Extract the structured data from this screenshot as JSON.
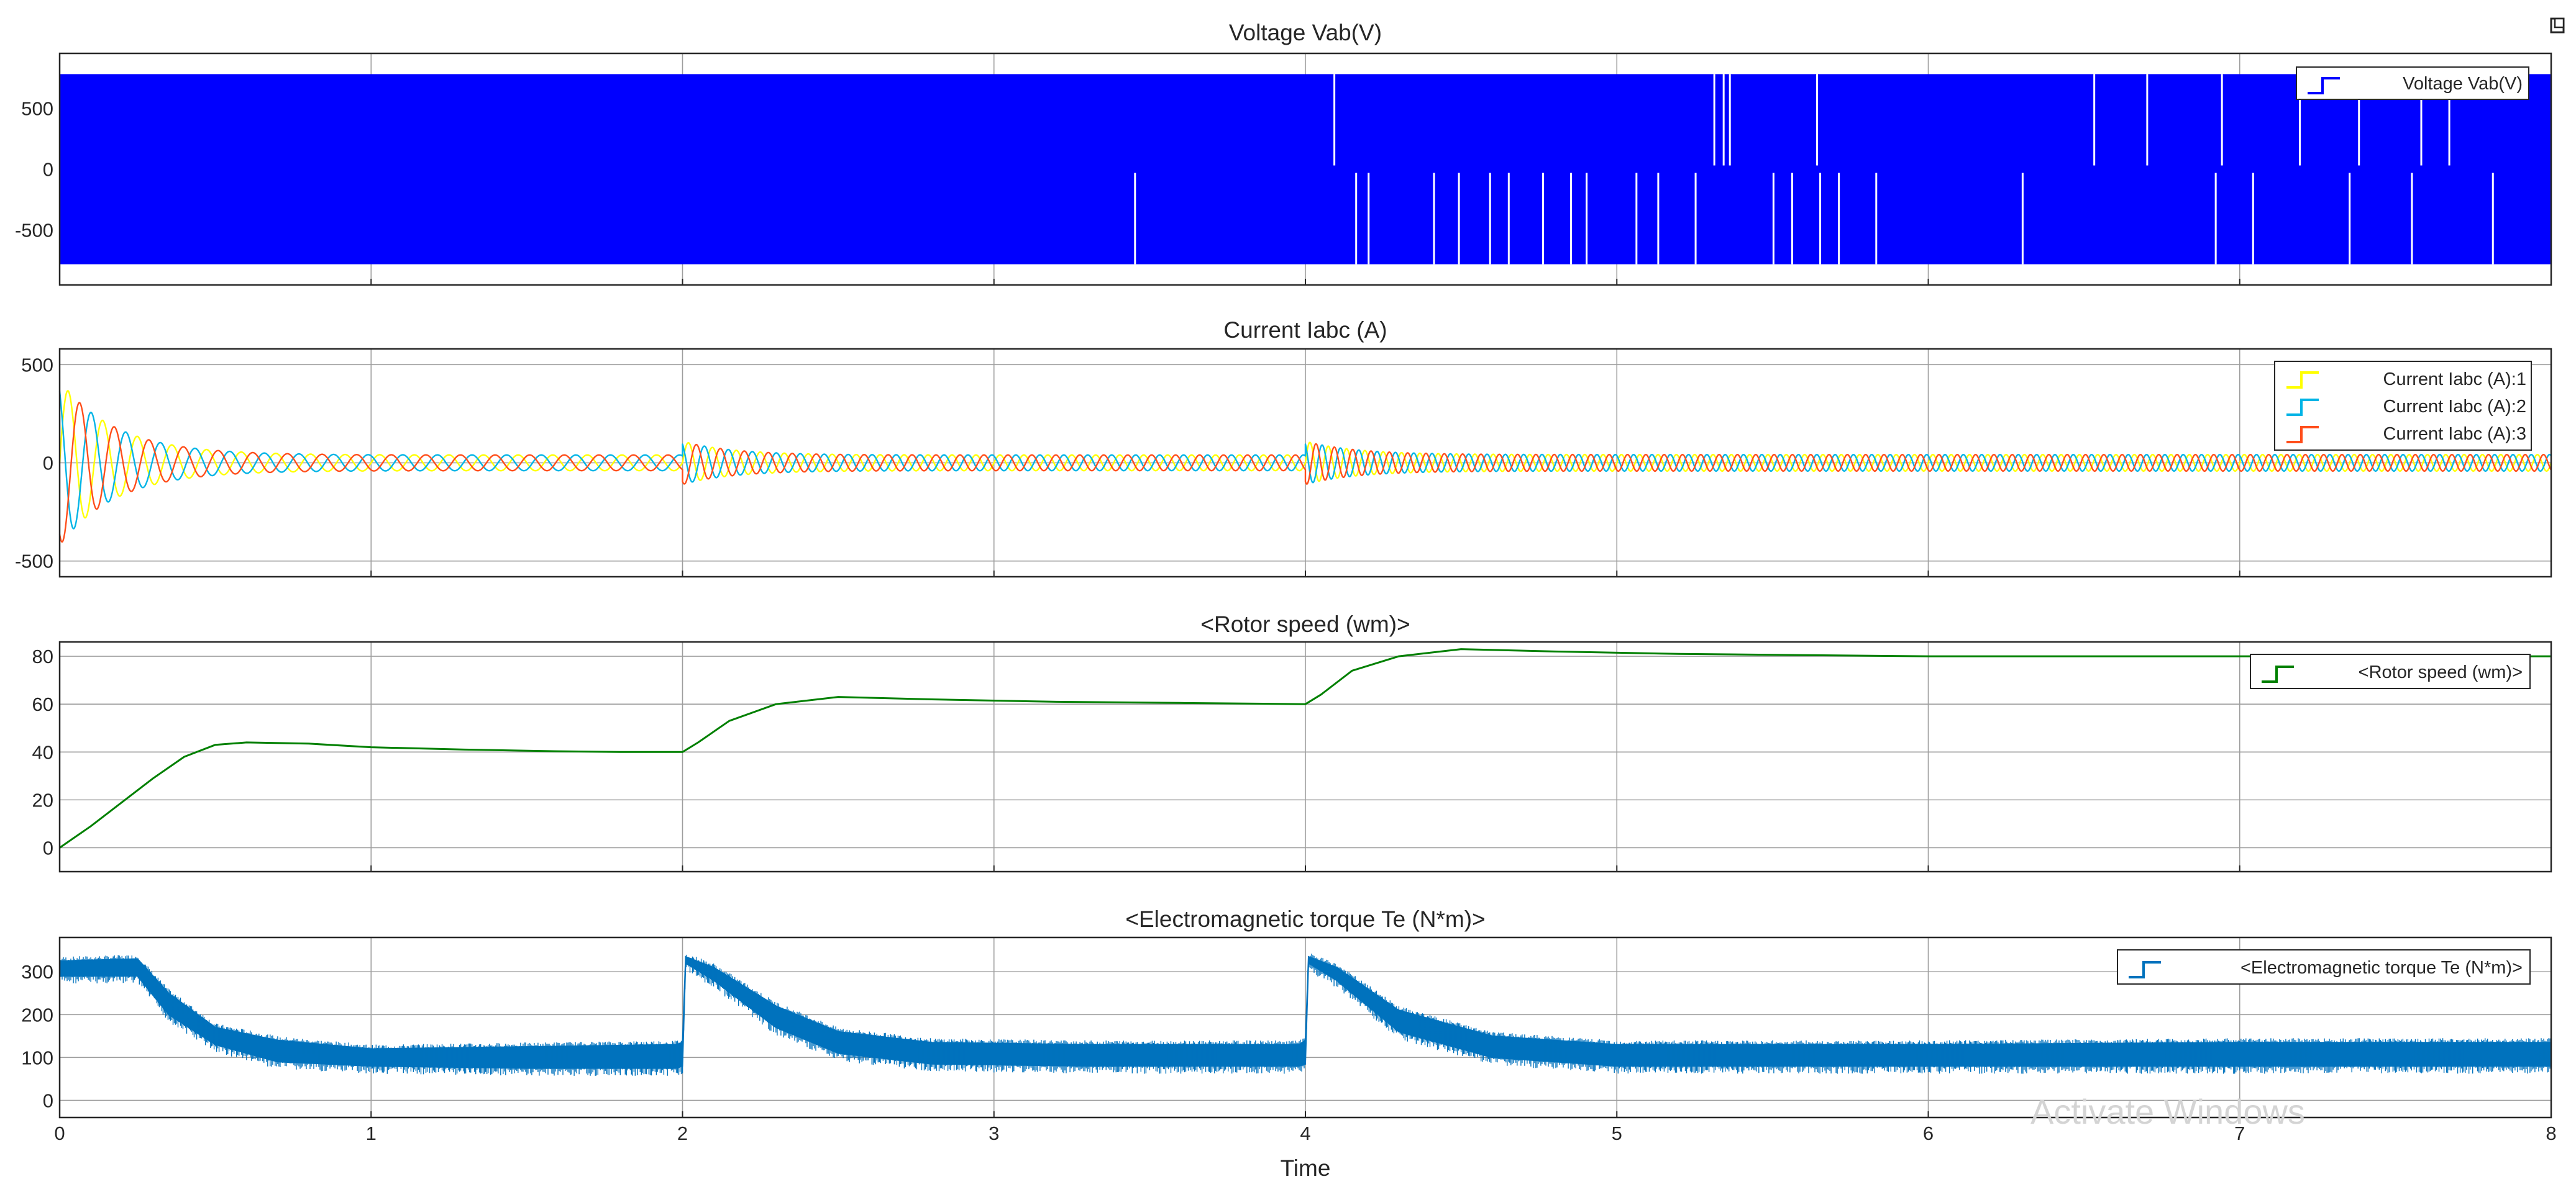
{
  "window": {
    "corner_icon": "expand-icon",
    "watermark": "Activate Windows"
  },
  "colors": {
    "voltage": "#0000ff",
    "phase_1": "#ffff00",
    "phase_2": "#00b4e6",
    "phase_3": "#ff4d1a",
    "rotor_speed": "#008000",
    "torque": "#0072bd",
    "grid": "#9e9e9e",
    "axes": "#262626"
  },
  "chart_data": [
    {
      "type": "line",
      "title": "Voltage Vab(V)",
      "xlabel": "",
      "ylabel": "",
      "xlim": [
        0,
        8
      ],
      "ylim": [
        -950,
        950
      ],
      "yticks": [
        500,
        0,
        -500
      ],
      "ytick_labels": [
        "500",
        "0",
        "-500"
      ],
      "xticks": [
        0,
        1,
        2,
        3,
        4,
        5,
        6,
        7,
        8
      ],
      "grid": true,
      "legend": "top-right",
      "envelope": [
        -780,
        780
      ],
      "gaps_upper": [
        4.09,
        5.31,
        5.34,
        5.36,
        5.64,
        6.53,
        6.7,
        6.94,
        7.19,
        7.38,
        7.58,
        7.67
      ],
      "gaps_lower": [
        3.45,
        4.16,
        4.2,
        4.41,
        4.49,
        4.59,
        4.65,
        4.76,
        4.85,
        4.9,
        5.06,
        5.13,
        5.25,
        5.5,
        5.56,
        5.65,
        5.71,
        5.83,
        6.3,
        6.92,
        7.04,
        7.35,
        7.55,
        7.81
      ],
      "series": [
        {
          "name": "Voltage Vab(V)",
          "color": "#0000ff"
        }
      ]
    },
    {
      "type": "line",
      "title": "Current Iabc (A)",
      "xlabel": "",
      "ylabel": "",
      "xlim": [
        0,
        8
      ],
      "ylim": [
        -580,
        580
      ],
      "yticks": [
        500,
        0,
        -500
      ],
      "ytick_labels": [
        "500",
        "0",
        "-500"
      ],
      "xticks": [
        0,
        1,
        2,
        3,
        4,
        5,
        6,
        7,
        8
      ],
      "grid": true,
      "legend": "top-right",
      "segments": [
        {
          "t0": 0,
          "t1": 2,
          "peak": 420,
          "steady": 40,
          "freq_hz": 9,
          "decay_s": 0.18
        },
        {
          "t0": 2,
          "t1": 4,
          "peak": 110,
          "steady": 40,
          "freq_hz": 13,
          "decay_s": 0.16
        },
        {
          "t0": 4,
          "t1": 8,
          "peak": 110,
          "steady": 42,
          "freq_hz": 17,
          "decay_s": 0.16
        }
      ],
      "series": [
        {
          "name": "Current Iabc (A):1",
          "color": "#ffff00"
        },
        {
          "name": "Current Iabc (A):2",
          "color": "#00b4e6"
        },
        {
          "name": "Current Iabc (A):3",
          "color": "#ff4d1a"
        }
      ]
    },
    {
      "type": "line",
      "title": "<Rotor speed (wm)>",
      "xlabel": "",
      "ylabel": "",
      "xlim": [
        0,
        8
      ],
      "ylim": [
        -10,
        86
      ],
      "yticks": [
        80,
        60,
        40,
        20,
        0
      ],
      "ytick_labels": [
        "80",
        "60",
        "40",
        "20",
        "0"
      ],
      "xticks": [
        0,
        1,
        2,
        3,
        4,
        5,
        6,
        7,
        8
      ],
      "grid": true,
      "legend": "top-right",
      "series": [
        {
          "name": "<Rotor speed (wm)>",
          "color": "#008000",
          "x": [
            0,
            0.1,
            0.2,
            0.3,
            0.4,
            0.5,
            0.6,
            0.8,
            1.0,
            1.3,
            1.6,
            1.8,
            2.0,
            2.05,
            2.15,
            2.3,
            2.5,
            2.8,
            3.2,
            3.6,
            4.0,
            4.05,
            4.15,
            4.3,
            4.5,
            4.8,
            5.2,
            5.6,
            6.0,
            7.0,
            8.0
          ],
          "y": [
            0,
            9,
            19,
            29,
            38,
            43,
            44,
            43.5,
            42,
            41,
            40.3,
            40,
            40,
            44,
            53,
            60,
            63,
            62,
            61,
            60.5,
            60,
            64,
            74,
            80,
            83,
            82,
            81,
            80.5,
            80,
            80,
            80
          ]
        }
      ]
    },
    {
      "type": "line",
      "title": "<Electromagnetic torque Te (N*m)>",
      "xlabel": "Time",
      "ylabel": "",
      "xlim": [
        0,
        8
      ],
      "ylim": [
        -40,
        380
      ],
      "yticks": [
        300,
        200,
        100,
        0
      ],
      "ytick_labels": [
        "300",
        "200",
        "100",
        "0"
      ],
      "xticks": [
        0,
        1,
        2,
        3,
        4,
        5,
        6,
        7,
        8
      ],
      "xtick_labels": [
        "0",
        "1",
        "2",
        "3",
        "4",
        "5",
        "6",
        "7",
        "8"
      ],
      "grid": true,
      "legend": "top-right",
      "series": [
        {
          "name": "<Electromagnetic torque Te (N*m)>",
          "color": "#0072bd",
          "x": [
            0,
            0.25,
            0.35,
            0.5,
            0.7,
            1.0,
            1.5,
            1.98,
            2.0,
            2.01,
            2.1,
            2.3,
            2.5,
            2.8,
            3.3,
            3.98,
            4.0,
            4.01,
            4.1,
            4.3,
            4.6,
            5.0,
            6.0,
            7.0,
            8.0
          ],
          "y_low": [
            290,
            290,
            200,
            130,
            90,
            80,
            75,
            75,
            80,
            320,
            280,
            170,
            110,
            85,
            80,
            80,
            85,
            320,
            280,
            160,
            100,
            80,
            80,
            80,
            80
          ],
          "y_high": [
            325,
            330,
            250,
            170,
            140,
            120,
            125,
            130,
            135,
            335,
            310,
            220,
            160,
            135,
            130,
            130,
            140,
            335,
            310,
            210,
            150,
            130,
            130,
            135,
            135
          ]
        }
      ]
    }
  ]
}
